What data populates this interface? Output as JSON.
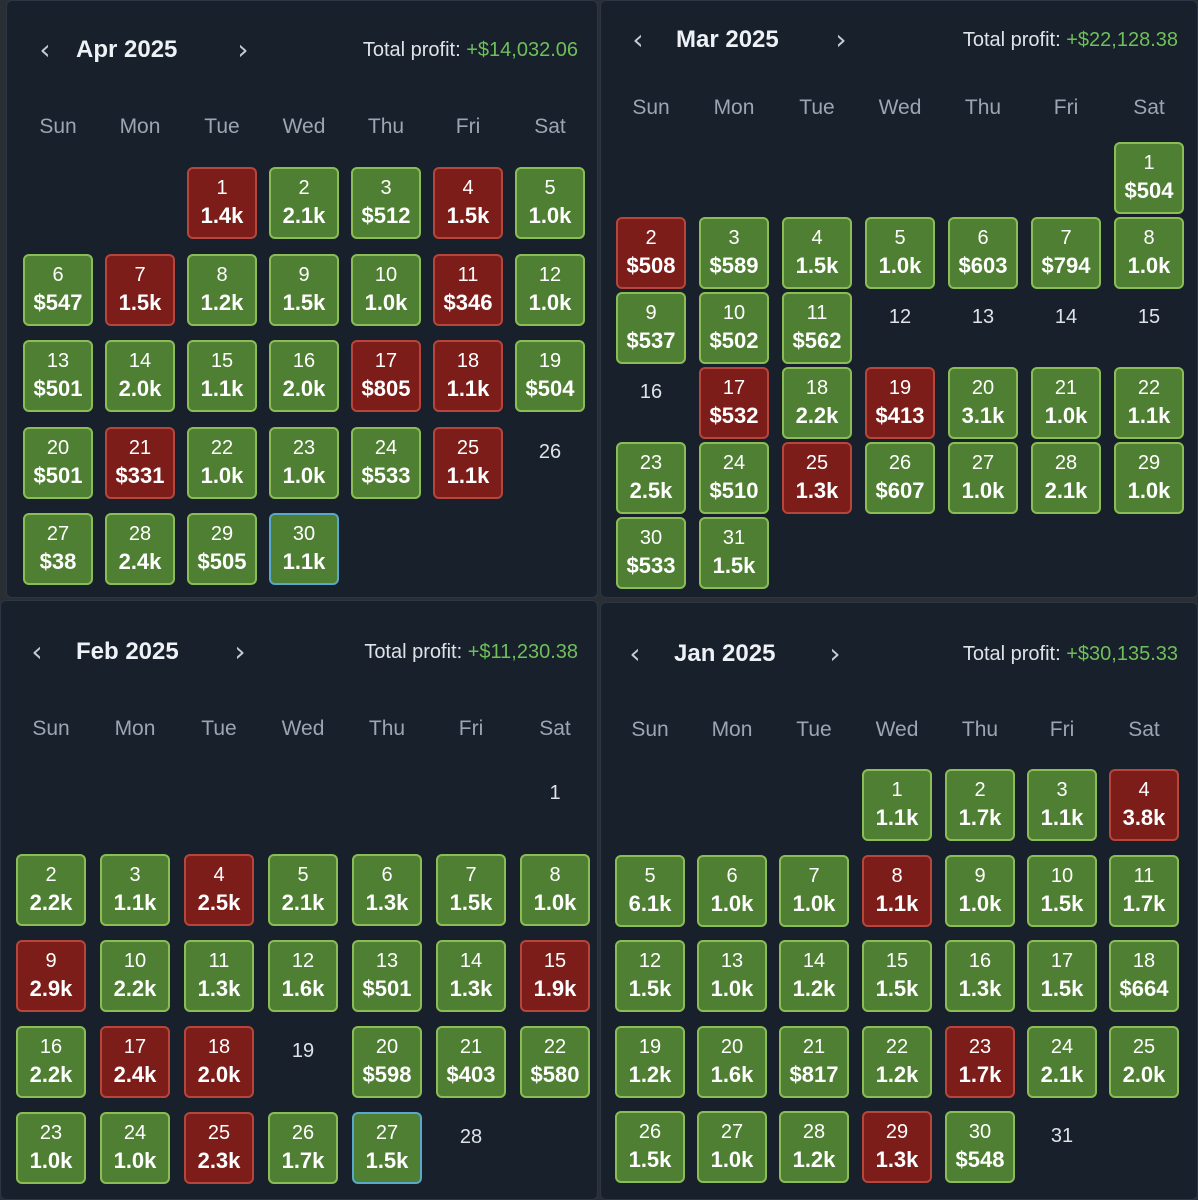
{
  "colors": {
    "background": "#17202b",
    "profit_fill": "#4f7f33",
    "profit_border": "#8bbd54",
    "loss_fill": "#7c1d1a",
    "loss_border": "#b8453b",
    "today_border": "#5aa8c9",
    "total_profit_text": "#6fbf5a"
  },
  "icons": {
    "prev": "chevron-left-icon",
    "next": "chevron-right-icon"
  },
  "calendars": [
    {
      "month": "Apr 2025",
      "profit_label": "Total profit:",
      "profit_value": "+$14,032.06",
      "weekdays": [
        "Sun",
        "Mon",
        "Tue",
        "Wed",
        "Thu",
        "Fri",
        "Sat"
      ],
      "first_weekday": 2,
      "days": [
        {
          "d": "1",
          "v": "1.4k",
          "s": "loss"
        },
        {
          "d": "2",
          "v": "2.1k",
          "s": "profit"
        },
        {
          "d": "3",
          "v": "$512",
          "s": "profit"
        },
        {
          "d": "4",
          "v": "1.5k",
          "s": "loss"
        },
        {
          "d": "5",
          "v": "1.0k",
          "s": "profit"
        },
        {
          "d": "6",
          "v": "$547",
          "s": "profit"
        },
        {
          "d": "7",
          "v": "1.5k",
          "s": "loss"
        },
        {
          "d": "8",
          "v": "1.2k",
          "s": "profit"
        },
        {
          "d": "9",
          "v": "1.5k",
          "s": "profit"
        },
        {
          "d": "10",
          "v": "1.0k",
          "s": "profit"
        },
        {
          "d": "11",
          "v": "$346",
          "s": "loss"
        },
        {
          "d": "12",
          "v": "1.0k",
          "s": "profit"
        },
        {
          "d": "13",
          "v": "$501",
          "s": "profit"
        },
        {
          "d": "14",
          "v": "2.0k",
          "s": "profit"
        },
        {
          "d": "15",
          "v": "1.1k",
          "s": "profit"
        },
        {
          "d": "16",
          "v": "2.0k",
          "s": "profit"
        },
        {
          "d": "17",
          "v": "$805",
          "s": "loss"
        },
        {
          "d": "18",
          "v": "1.1k",
          "s": "loss"
        },
        {
          "d": "19",
          "v": "$504",
          "s": "profit"
        },
        {
          "d": "20",
          "v": "$501",
          "s": "profit"
        },
        {
          "d": "21",
          "v": "$331",
          "s": "loss"
        },
        {
          "d": "22",
          "v": "1.0k",
          "s": "profit"
        },
        {
          "d": "23",
          "v": "1.0k",
          "s": "profit"
        },
        {
          "d": "24",
          "v": "$533",
          "s": "profit"
        },
        {
          "d": "25",
          "v": "1.1k",
          "s": "loss"
        },
        {
          "d": "26",
          "v": "",
          "s": "none"
        },
        {
          "d": "27",
          "v": "$38",
          "s": "profit"
        },
        {
          "d": "28",
          "v": "2.4k",
          "s": "profit"
        },
        {
          "d": "29",
          "v": "$505",
          "s": "profit"
        },
        {
          "d": "30",
          "v": "1.1k",
          "s": "profit",
          "today": true
        }
      ]
    },
    {
      "month": "Mar 2025",
      "profit_label": "Total profit:",
      "profit_value": "+$22,128.38",
      "weekdays": [
        "Sun",
        "Mon",
        "Tue",
        "Wed",
        "Thu",
        "Fri",
        "Sat"
      ],
      "first_weekday": 6,
      "days": [
        {
          "d": "1",
          "v": "$504",
          "s": "profit"
        },
        {
          "d": "2",
          "v": "$508",
          "s": "loss"
        },
        {
          "d": "3",
          "v": "$589",
          "s": "profit"
        },
        {
          "d": "4",
          "v": "1.5k",
          "s": "profit"
        },
        {
          "d": "5",
          "v": "1.0k",
          "s": "profit"
        },
        {
          "d": "6",
          "v": "$603",
          "s": "profit"
        },
        {
          "d": "7",
          "v": "$794",
          "s": "profit"
        },
        {
          "d": "8",
          "v": "1.0k",
          "s": "profit"
        },
        {
          "d": "9",
          "v": "$537",
          "s": "profit"
        },
        {
          "d": "10",
          "v": "$502",
          "s": "profit"
        },
        {
          "d": "11",
          "v": "$562",
          "s": "profit"
        },
        {
          "d": "12",
          "v": "",
          "s": "none"
        },
        {
          "d": "13",
          "v": "",
          "s": "none"
        },
        {
          "d": "14",
          "v": "",
          "s": "none"
        },
        {
          "d": "15",
          "v": "",
          "s": "none"
        },
        {
          "d": "16",
          "v": "",
          "s": "none"
        },
        {
          "d": "17",
          "v": "$532",
          "s": "loss"
        },
        {
          "d": "18",
          "v": "2.2k",
          "s": "profit"
        },
        {
          "d": "19",
          "v": "$413",
          "s": "loss"
        },
        {
          "d": "20",
          "v": "3.1k",
          "s": "profit"
        },
        {
          "d": "21",
          "v": "1.0k",
          "s": "profit"
        },
        {
          "d": "22",
          "v": "1.1k",
          "s": "profit"
        },
        {
          "d": "23",
          "v": "2.5k",
          "s": "profit"
        },
        {
          "d": "24",
          "v": "$510",
          "s": "profit"
        },
        {
          "d": "25",
          "v": "1.3k",
          "s": "loss"
        },
        {
          "d": "26",
          "v": "$607",
          "s": "profit"
        },
        {
          "d": "27",
          "v": "1.0k",
          "s": "profit"
        },
        {
          "d": "28",
          "v": "2.1k",
          "s": "profit"
        },
        {
          "d": "29",
          "v": "1.0k",
          "s": "profit"
        },
        {
          "d": "30",
          "v": "$533",
          "s": "profit"
        },
        {
          "d": "31",
          "v": "1.5k",
          "s": "profit"
        }
      ]
    },
    {
      "month": "Feb 2025",
      "profit_label": "Total profit:",
      "profit_value": "+$11,230.38",
      "weekdays": [
        "Sun",
        "Mon",
        "Tue",
        "Wed",
        "Thu",
        "Fri",
        "Sat"
      ],
      "first_weekday": 6,
      "days": [
        {
          "d": "1",
          "v": "",
          "s": "none"
        },
        {
          "d": "2",
          "v": "2.2k",
          "s": "profit"
        },
        {
          "d": "3",
          "v": "1.1k",
          "s": "profit"
        },
        {
          "d": "4",
          "v": "2.5k",
          "s": "loss"
        },
        {
          "d": "5",
          "v": "2.1k",
          "s": "profit"
        },
        {
          "d": "6",
          "v": "1.3k",
          "s": "profit"
        },
        {
          "d": "7",
          "v": "1.5k",
          "s": "profit"
        },
        {
          "d": "8",
          "v": "1.0k",
          "s": "profit"
        },
        {
          "d": "9",
          "v": "2.9k",
          "s": "loss"
        },
        {
          "d": "10",
          "v": "2.2k",
          "s": "profit"
        },
        {
          "d": "11",
          "v": "1.3k",
          "s": "profit"
        },
        {
          "d": "12",
          "v": "1.6k",
          "s": "profit"
        },
        {
          "d": "13",
          "v": "$501",
          "s": "profit"
        },
        {
          "d": "14",
          "v": "1.3k",
          "s": "profit"
        },
        {
          "d": "15",
          "v": "1.9k",
          "s": "loss"
        },
        {
          "d": "16",
          "v": "2.2k",
          "s": "profit"
        },
        {
          "d": "17",
          "v": "2.4k",
          "s": "loss"
        },
        {
          "d": "18",
          "v": "2.0k",
          "s": "loss"
        },
        {
          "d": "19",
          "v": "",
          "s": "none"
        },
        {
          "d": "20",
          "v": "$598",
          "s": "profit"
        },
        {
          "d": "21",
          "v": "$403",
          "s": "profit"
        },
        {
          "d": "22",
          "v": "$580",
          "s": "profit"
        },
        {
          "d": "23",
          "v": "1.0k",
          "s": "profit"
        },
        {
          "d": "24",
          "v": "1.0k",
          "s": "profit"
        },
        {
          "d": "25",
          "v": "2.3k",
          "s": "loss"
        },
        {
          "d": "26",
          "v": "1.7k",
          "s": "profit"
        },
        {
          "d": "27",
          "v": "1.5k",
          "s": "profit",
          "today": true
        },
        {
          "d": "28",
          "v": "",
          "s": "none"
        }
      ]
    },
    {
      "month": "Jan 2025",
      "profit_label": "Total profit:",
      "profit_value": "+$30,135.33",
      "weekdays": [
        "Sun",
        "Mon",
        "Tue",
        "Wed",
        "Thu",
        "Fri",
        "Sat"
      ],
      "first_weekday": 3,
      "days": [
        {
          "d": "1",
          "v": "1.1k",
          "s": "profit"
        },
        {
          "d": "2",
          "v": "1.7k",
          "s": "profit"
        },
        {
          "d": "3",
          "v": "1.1k",
          "s": "profit"
        },
        {
          "d": "4",
          "v": "3.8k",
          "s": "loss"
        },
        {
          "d": "5",
          "v": "6.1k",
          "s": "profit"
        },
        {
          "d": "6",
          "v": "1.0k",
          "s": "profit"
        },
        {
          "d": "7",
          "v": "1.0k",
          "s": "profit"
        },
        {
          "d": "8",
          "v": "1.1k",
          "s": "loss"
        },
        {
          "d": "9",
          "v": "1.0k",
          "s": "profit"
        },
        {
          "d": "10",
          "v": "1.5k",
          "s": "profit"
        },
        {
          "d": "11",
          "v": "1.7k",
          "s": "profit"
        },
        {
          "d": "12",
          "v": "1.5k",
          "s": "profit"
        },
        {
          "d": "13",
          "v": "1.0k",
          "s": "profit"
        },
        {
          "d": "14",
          "v": "1.2k",
          "s": "profit"
        },
        {
          "d": "15",
          "v": "1.5k",
          "s": "profit"
        },
        {
          "d": "16",
          "v": "1.3k",
          "s": "profit"
        },
        {
          "d": "17",
          "v": "1.5k",
          "s": "profit"
        },
        {
          "d": "18",
          "v": "$664",
          "s": "profit"
        },
        {
          "d": "19",
          "v": "1.2k",
          "s": "profit"
        },
        {
          "d": "20",
          "v": "1.6k",
          "s": "profit"
        },
        {
          "d": "21",
          "v": "$817",
          "s": "profit"
        },
        {
          "d": "22",
          "v": "1.2k",
          "s": "profit"
        },
        {
          "d": "23",
          "v": "1.7k",
          "s": "loss"
        },
        {
          "d": "24",
          "v": "2.1k",
          "s": "profit"
        },
        {
          "d": "25",
          "v": "2.0k",
          "s": "profit"
        },
        {
          "d": "26",
          "v": "1.5k",
          "s": "profit"
        },
        {
          "d": "27",
          "v": "1.0k",
          "s": "profit"
        },
        {
          "d": "28",
          "v": "1.2k",
          "s": "profit"
        },
        {
          "d": "29",
          "v": "1.3k",
          "s": "loss"
        },
        {
          "d": "30",
          "v": "$548",
          "s": "profit"
        },
        {
          "d": "31",
          "v": "",
          "s": "none"
        }
      ]
    }
  ]
}
